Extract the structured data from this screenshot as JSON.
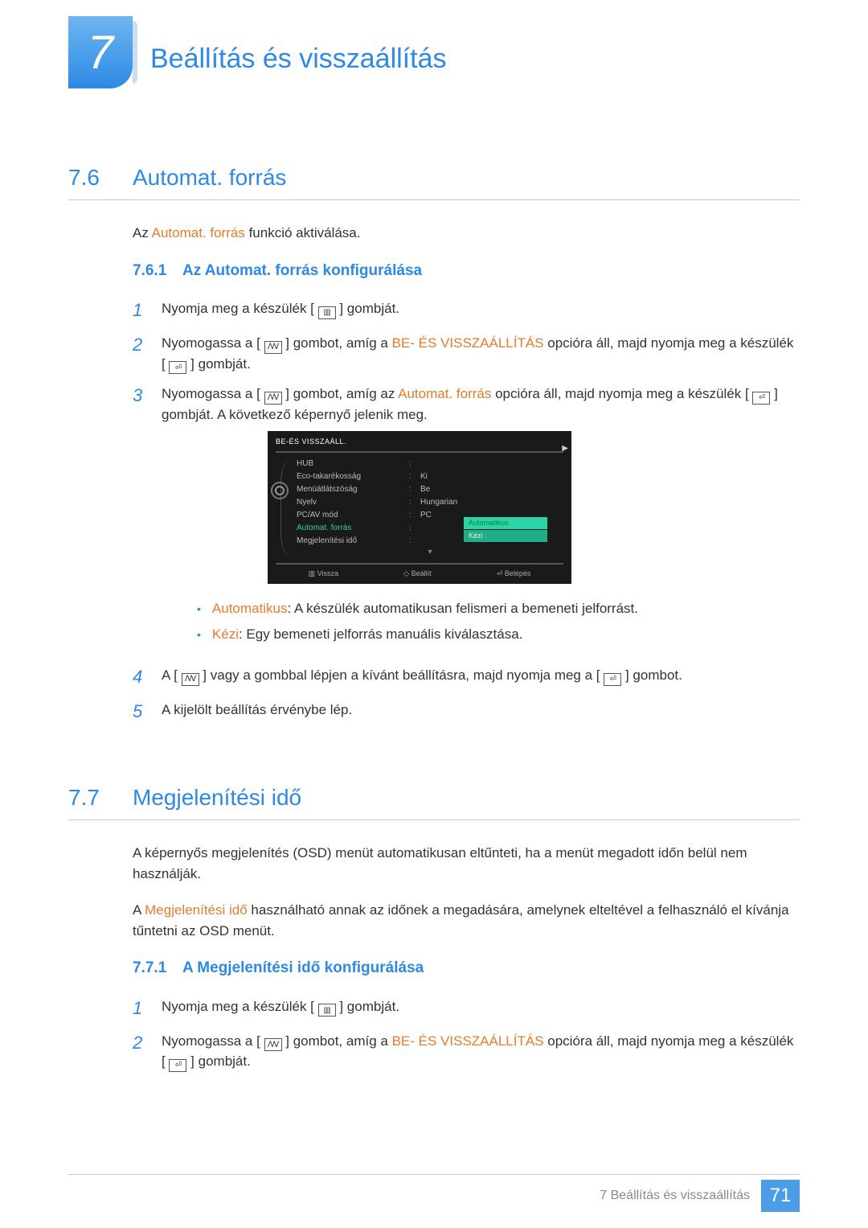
{
  "chapter": {
    "number": "7",
    "title": "Beállítás és visszaállítás"
  },
  "s76": {
    "num": "7.6",
    "title": "Automat. forrás",
    "intro_pre": "Az ",
    "intro_hl": "Automat. forrás",
    "intro_post": " funkció aktiválása.",
    "sub": {
      "num": "7.6.1",
      "title": "Az Automat. forrás konfigurálása"
    },
    "step1": {
      "pre": "Nyomja meg a készülék [ ",
      "post": " ] gombját."
    },
    "step2": {
      "pre": "Nyomogassa a [ ",
      "mid1": " ] gombot, amíg a ",
      "hl": "BE- ÉS VISSZAÁLLÍTÁS",
      "mid2": " opcióra áll, majd nyomja meg a készülék [ ",
      "post": " ] gombját."
    },
    "step3": {
      "pre": "Nyomogassa a [ ",
      "mid1": " ] gombot, amíg az ",
      "hl": "Automat. forrás",
      "mid2": " opcióra áll, majd nyomja meg a készülék [ ",
      "post": " ] gombját. A következő képernyő jelenik meg."
    },
    "bul1": {
      "hl": "Automatikus",
      "txt": ": A készülék automatikusan felismeri a bemeneti jelforrást."
    },
    "bul2": {
      "hl": "Kézi",
      "txt": ": Egy bemeneti jelforrás manuális kiválasztása."
    },
    "step4": {
      "pre": "A [ ",
      "mid": " ] vagy a gombbal lépjen a kívánt beállításra, majd nyomja meg a [ ",
      "post": " ] gombot."
    },
    "step5": "A kijelölt beállítás érvénybe lép."
  },
  "osd": {
    "title": "BE-ÉS VISSZAÁLL.",
    "rows": [
      {
        "label": "HUB",
        "val": ""
      },
      {
        "label": "Eco-takarékosság",
        "val": "Ki"
      },
      {
        "label": "Menüátlátszóság",
        "val": "Be"
      },
      {
        "label": "Nyelv",
        "val": "Hungarian"
      },
      {
        "label": "PC/AV mód",
        "val": "PC"
      },
      {
        "label": "Automat. forrás",
        "val": "",
        "active": true
      },
      {
        "label": "Megjelenítési idő",
        "val": ""
      }
    ],
    "opts": [
      "Automatikus",
      "Kézi"
    ],
    "foot": {
      "back": "Vissza",
      "adjust": "Beállít",
      "enter": "Belépés"
    }
  },
  "s77": {
    "num": "7.7",
    "title": "Megjelenítési idő",
    "p1": "A képernyős megjelenítés (OSD) menüt automatikusan eltűnteti, ha a menüt megadott időn belül nem használják.",
    "p2_pre": "A ",
    "p2_hl": "Megjelenítési idő",
    "p2_post": " használható annak az időnek a megadására, amelynek elteltével a felhasználó el kívánja tűntetni az OSD menüt.",
    "sub": {
      "num": "7.7.1",
      "title": "A Megjelenítési idő konfigurálása"
    },
    "step1": {
      "pre": "Nyomja meg a készülék [ ",
      "post": " ] gombját."
    },
    "step2": {
      "pre": "Nyomogassa a [ ",
      "mid1": " ] gombot, amíg a ",
      "hl": "BE- ÉS VISSZAÁLLÍTÁS",
      "mid2": " opcióra áll, majd nyomja meg a készülék [ ",
      "post": " ] gombját."
    }
  },
  "footer": {
    "label": "7 Beállítás és visszaállítás",
    "page": "71"
  },
  "colors": {
    "blue": "#2d89e5",
    "orange": "#e57b2d",
    "teal": "#2dd4a7",
    "osd_bg": "#1a1a1a",
    "footer_blue": "#4c9de8"
  }
}
